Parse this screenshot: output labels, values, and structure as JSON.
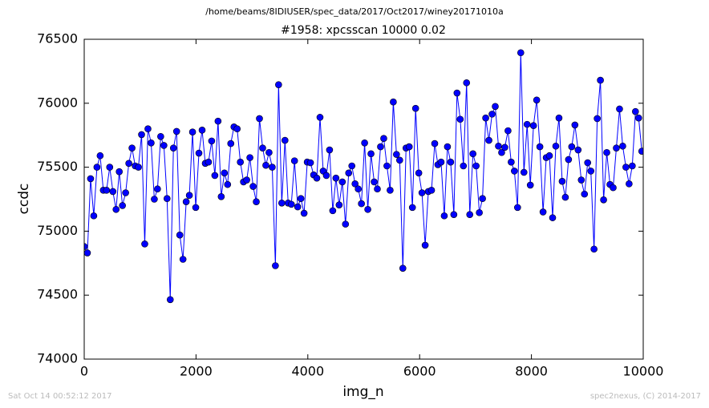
{
  "chart_data": {
    "type": "line",
    "suptitle": "/home/beams/8IDIUSER/spec_data/2017/Oct2017/winey20171010a",
    "title": "#1958: xpcsscan 10000 0.02",
    "xlabel": "img_n",
    "ylabel": "ccdc",
    "footer_left": "Sat Oct 14 00:52:12 2017",
    "footer_right": "spec2nexus, (C) 2014-2017",
    "color": "#0000ff",
    "marker": "circle",
    "xlim": [
      0,
      10000
    ],
    "xticks": [
      0,
      2000,
      4000,
      6000,
      8000,
      10000
    ],
    "ylim": [
      74000,
      76500
    ],
    "yticks": [
      74000,
      74500,
      75000,
      75500,
      76000,
      76500
    ],
    "x": [
      0,
      57,
      114,
      171,
      228,
      285,
      342,
      399,
      456,
      513,
      570,
      627,
      684,
      741,
      798,
      855,
      912,
      969,
      1026,
      1083,
      1140,
      1197,
      1254,
      1311,
      1368,
      1425,
      1482,
      1539,
      1596,
      1653,
      1710,
      1767,
      1824,
      1881,
      1938,
      1995,
      2052,
      2109,
      2166,
      2223,
      2280,
      2337,
      2394,
      2451,
      2508,
      2565,
      2622,
      2679,
      2736,
      2793,
      2850,
      2907,
      2964,
      3021,
      3078,
      3135,
      3192,
      3249,
      3306,
      3363,
      3420,
      3477,
      3534,
      3591,
      3648,
      3705,
      3762,
      3819,
      3876,
      3933,
      3990,
      4047,
      4104,
      4161,
      4218,
      4275,
      4332,
      4389,
      4446,
      4503,
      4560,
      4617,
      4674,
      4731,
      4788,
      4845,
      4902,
      4959,
      5016,
      5073,
      5130,
      5187,
      5244,
      5301,
      5358,
      5415,
      5472,
      5529,
      5586,
      5643,
      5700,
      5757,
      5814,
      5871,
      5928,
      5985,
      6042,
      6099,
      6156,
      6213,
      6270,
      6327,
      6384,
      6441,
      6498,
      6555,
      6612,
      6669,
      6726,
      6783,
      6840,
      6897,
      6954,
      7011,
      7068,
      7125,
      7182,
      7239,
      7296,
      7353,
      7410,
      7467,
      7524,
      7581,
      7638,
      7695,
      7752,
      7809,
      7866,
      7923,
      7980,
      8037,
      8094,
      8151,
      8208,
      8265,
      8322,
      8379,
      8436,
      8493,
      8550,
      8607,
      8664,
      8721,
      8778,
      8835,
      8892,
      8949,
      9006,
      9063,
      9120,
      9177,
      9234,
      9291,
      9348,
      9405,
      9462,
      9519,
      9576,
      9633,
      9690,
      9747,
      9804,
      9861,
      9918,
      9975
    ],
    "values": [
      74880,
      74830,
      75410,
      75120,
      75500,
      75590,
      75320,
      75320,
      75500,
      75310,
      75170,
      75465,
      75200,
      75300,
      75530,
      75650,
      75510,
      75500,
      75755,
      74900,
      75800,
      75690,
      75250,
      75330,
      75740,
      75670,
      75255,
      74465,
      75650,
      75780,
      74970,
      74780,
      75230,
      75280,
      75775,
      75185,
      75610,
      75790,
      75530,
      75540,
      75705,
      75435,
      75860,
      75270,
      75455,
      75365,
      75685,
      75815,
      75800,
      75540,
      75385,
      75400,
      75575,
      75350,
      75230,
      75880,
      75650,
      75515,
      75615,
      75500,
      74730,
      76145,
      75220,
      75710,
      75220,
      75210,
      75550,
      75190,
      75255,
      75140,
      75540,
      75535,
      75440,
      75415,
      75890,
      75470,
      75435,
      75635,
      75160,
      75415,
      75205,
      75385,
      75055,
      75455,
      75510,
      75370,
      75330,
      75215,
      75690,
      75170,
      75605,
      75385,
      75330,
      75660,
      75725,
      75510,
      75320,
      76010,
      75600,
      75555,
      74710,
      75650,
      75660,
      75185,
      75960,
      75455,
      75300,
      74890,
      75310,
      75320,
      75685,
      75520,
      75540,
      75120,
      75660,
      75540,
      75130,
      76080,
      75875,
      75510,
      76160,
      75130,
      75605,
      75510,
      75145,
      75255,
      75885,
      75710,
      75915,
      75975,
      75665,
      75615,
      75655,
      75785,
      75540,
      75470,
      75185,
      76395,
      75460,
      75835,
      75360,
      75825,
      76025,
      75660,
      75150,
      75575,
      75590,
      75105,
      75665,
      75885,
      75390,
      75265,
      75560,
      75660,
      75830,
      75635,
      75400,
      75290,
      75535,
      75470,
      74860,
      75880,
      76180,
      75245,
      75615,
      75365,
      75340,
      75650,
      75955,
      75665,
      75500,
      75370,
      75510,
      75935,
      75885,
      75625
    ]
  }
}
